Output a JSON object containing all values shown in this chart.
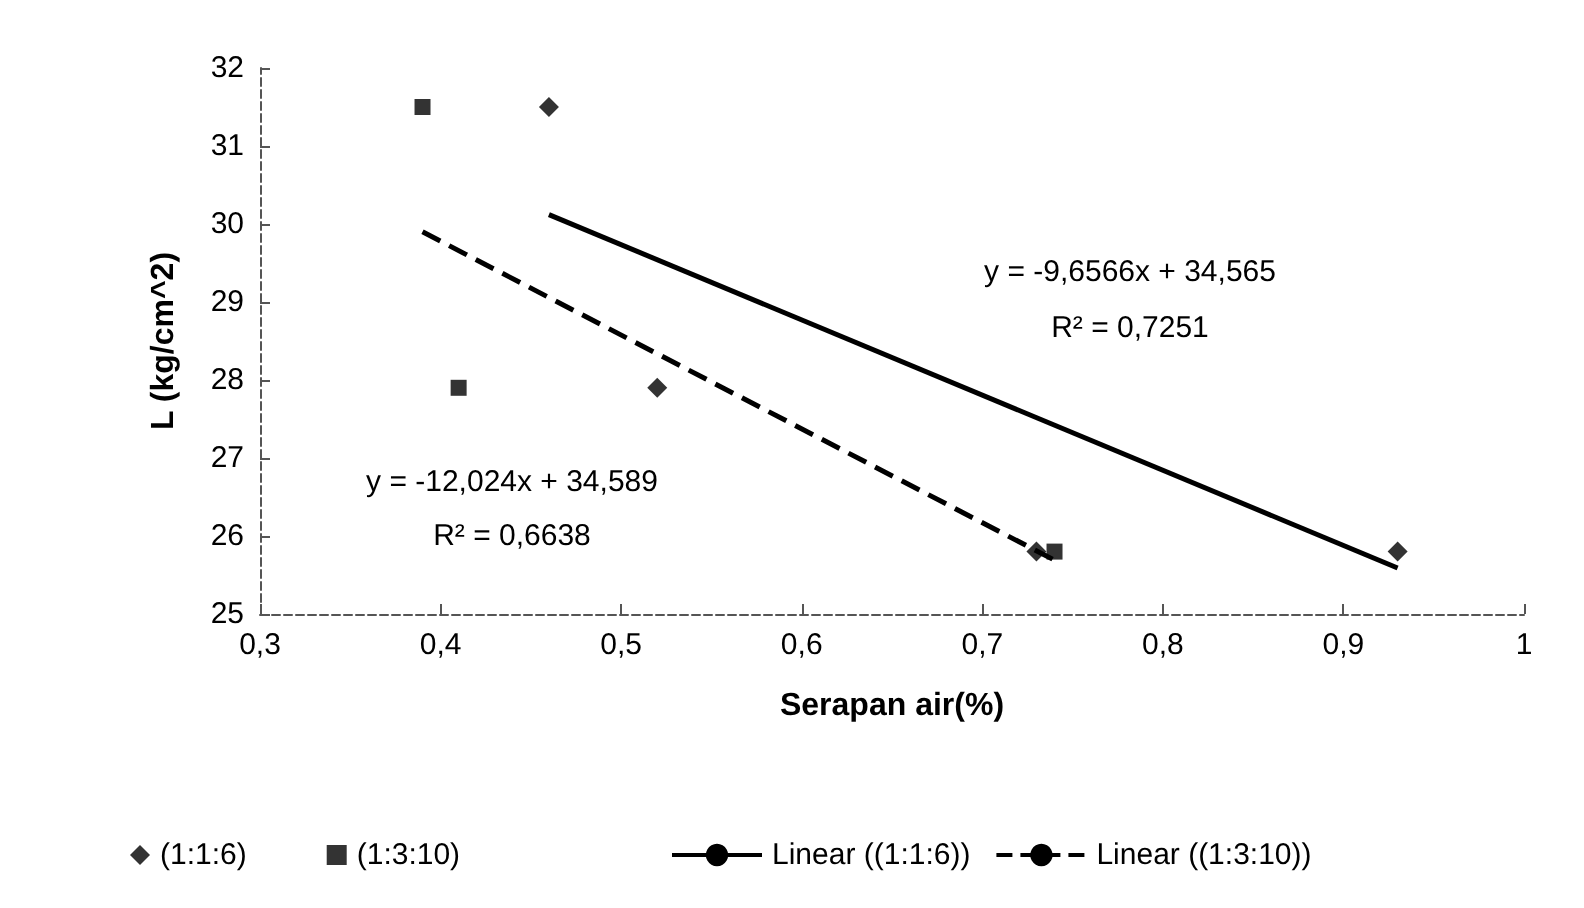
{
  "chart_data": {
    "type": "scatter",
    "xlabel": "Serapan air(%)",
    "ylabel": "L (kg/cm^2)",
    "xlim": [
      0.3,
      1
    ],
    "xticks": [
      {
        "value": 0.3,
        "label": "0,3"
      },
      {
        "value": 0.4,
        "label": "0,4"
      },
      {
        "value": 0.5,
        "label": "0,5"
      },
      {
        "value": 0.6,
        "label": "0,6"
      },
      {
        "value": 0.7,
        "label": "0,7"
      },
      {
        "value": 0.8,
        "label": "0,8"
      },
      {
        "value": 0.9,
        "label": "0,9"
      },
      1
    ],
    "ylim": [
      25,
      32
    ],
    "yticks": [
      25,
      26,
      27,
      28,
      29,
      30,
      31,
      32
    ],
    "grid": false,
    "legend": "bottom",
    "series": [
      {
        "name": "(1:1:6)",
        "marker": "diamond",
        "color": "#000000",
        "x": [
          0.46,
          0.52,
          0.73,
          0.93
        ],
        "values": [
          31.5,
          27.9,
          25.8,
          25.8
        ]
      },
      {
        "name": "(1:3:10)",
        "marker": "square",
        "color": "#000000",
        "x": [
          0.39,
          0.41,
          0.74
        ],
        "values": [
          31.5,
          27.9,
          25.8
        ]
      },
      {
        "name": "Linear ((1:1:6))",
        "type": "line",
        "line_style": "solid",
        "color": "#000000",
        "x": [
          0.46,
          0.93
        ],
        "values": [
          30.12,
          25.59
        ]
      },
      {
        "name": "Linear ((1:3:10))",
        "type": "line",
        "line_style": "dashed",
        "color": "#000000",
        "x": [
          0.39,
          0.74
        ],
        "values": [
          29.9,
          25.69
        ]
      }
    ],
    "annotations": [
      "y = -9,6566x + 34,565",
      "R² = 0,7251",
      "y = -12,024x + 34,589",
      "R² = 0,6638"
    ]
  }
}
